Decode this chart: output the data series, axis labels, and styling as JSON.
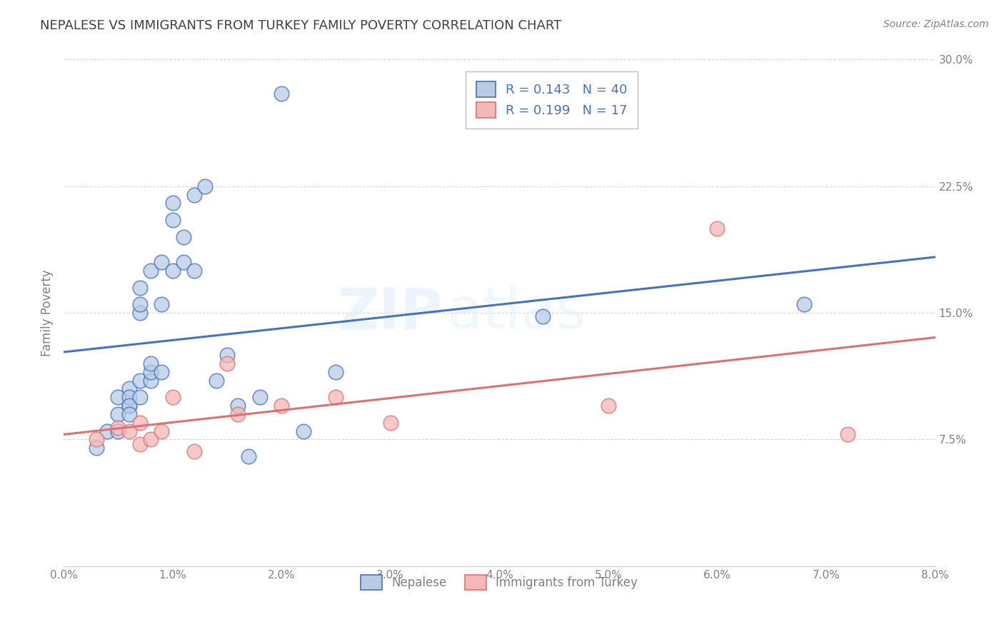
{
  "title": "NEPALESE VS IMMIGRANTS FROM TURKEY FAMILY POVERTY CORRELATION CHART",
  "source": "Source: ZipAtlas.com",
  "ylabel": "Family Poverty",
  "xlim": [
    0.0,
    0.08
  ],
  "ylim": [
    0.0,
    0.3
  ],
  "xticks": [
    0.0,
    0.01,
    0.02,
    0.03,
    0.04,
    0.05,
    0.06,
    0.07,
    0.08
  ],
  "xticklabels": [
    "0.0%",
    "1.0%",
    "2.0%",
    "3.0%",
    "4.0%",
    "5.0%",
    "6.0%",
    "7.0%",
    "8.0%"
  ],
  "yticks": [
    0.0,
    0.075,
    0.15,
    0.225,
    0.3
  ],
  "yticklabels": [
    "",
    "7.5%",
    "15.0%",
    "22.5%",
    "30.0%"
  ],
  "blue_color": "#4472C4",
  "blue_fill": "#B8CCE4",
  "pink_color": "#E07070",
  "pink_fill": "#F4B8B8",
  "R_blue": 0.143,
  "N_blue": 40,
  "R_pink": 0.199,
  "N_pink": 17,
  "legend_label_blue": "Nepalese",
  "legend_label_pink": "Immigrants from Turkey",
  "watermark_zip": "ZIP",
  "watermark_atlas": "atlas",
  "background_color": "#FFFFFF",
  "grid_color": "#CCCCCC",
  "title_color": "#404040",
  "axis_label_color": "#808080",
  "tick_color": "#808080",
  "blue_scatter_x": [
    0.003,
    0.004,
    0.005,
    0.005,
    0.005,
    0.006,
    0.006,
    0.006,
    0.006,
    0.006,
    0.007,
    0.007,
    0.007,
    0.007,
    0.007,
    0.008,
    0.008,
    0.008,
    0.008,
    0.009,
    0.009,
    0.009,
    0.01,
    0.01,
    0.01,
    0.011,
    0.011,
    0.012,
    0.012,
    0.013,
    0.014,
    0.015,
    0.016,
    0.017,
    0.018,
    0.02,
    0.022,
    0.025,
    0.044,
    0.068
  ],
  "blue_scatter_y": [
    0.07,
    0.08,
    0.1,
    0.08,
    0.09,
    0.095,
    0.105,
    0.1,
    0.095,
    0.09,
    0.1,
    0.11,
    0.15,
    0.155,
    0.165,
    0.11,
    0.115,
    0.12,
    0.175,
    0.115,
    0.155,
    0.18,
    0.175,
    0.205,
    0.215,
    0.18,
    0.195,
    0.175,
    0.22,
    0.225,
    0.11,
    0.125,
    0.095,
    0.065,
    0.1,
    0.28,
    0.08,
    0.115,
    0.148,
    0.155
  ],
  "pink_scatter_x": [
    0.003,
    0.005,
    0.006,
    0.007,
    0.007,
    0.008,
    0.009,
    0.01,
    0.012,
    0.015,
    0.016,
    0.02,
    0.025,
    0.03,
    0.05,
    0.06,
    0.072
  ],
  "pink_scatter_y": [
    0.075,
    0.082,
    0.08,
    0.072,
    0.085,
    0.075,
    0.08,
    0.1,
    0.068,
    0.12,
    0.09,
    0.095,
    0.1,
    0.085,
    0.095,
    0.2,
    0.078
  ]
}
